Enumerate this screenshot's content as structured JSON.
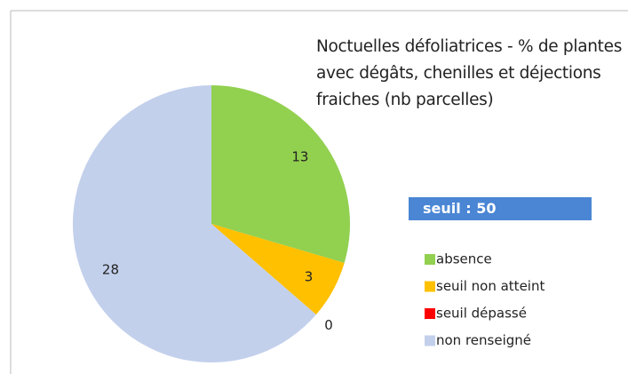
{
  "chart_data": {
    "type": "pie",
    "title": "Noctuelles défoliatrices - % de plantes avec dégâts, chenilles et déjections fraiches (nb parcelles)",
    "annotation": "seuil : 50",
    "categories": [
      "absence",
      "seuil non atteint",
      "seuil dépassé",
      "non renseigné"
    ],
    "values": [
      13,
      3,
      0,
      28
    ],
    "colors": [
      "#92d050",
      "#ffc000",
      "#ff0000",
      "#c3d0ec"
    ],
    "legend": "right"
  }
}
